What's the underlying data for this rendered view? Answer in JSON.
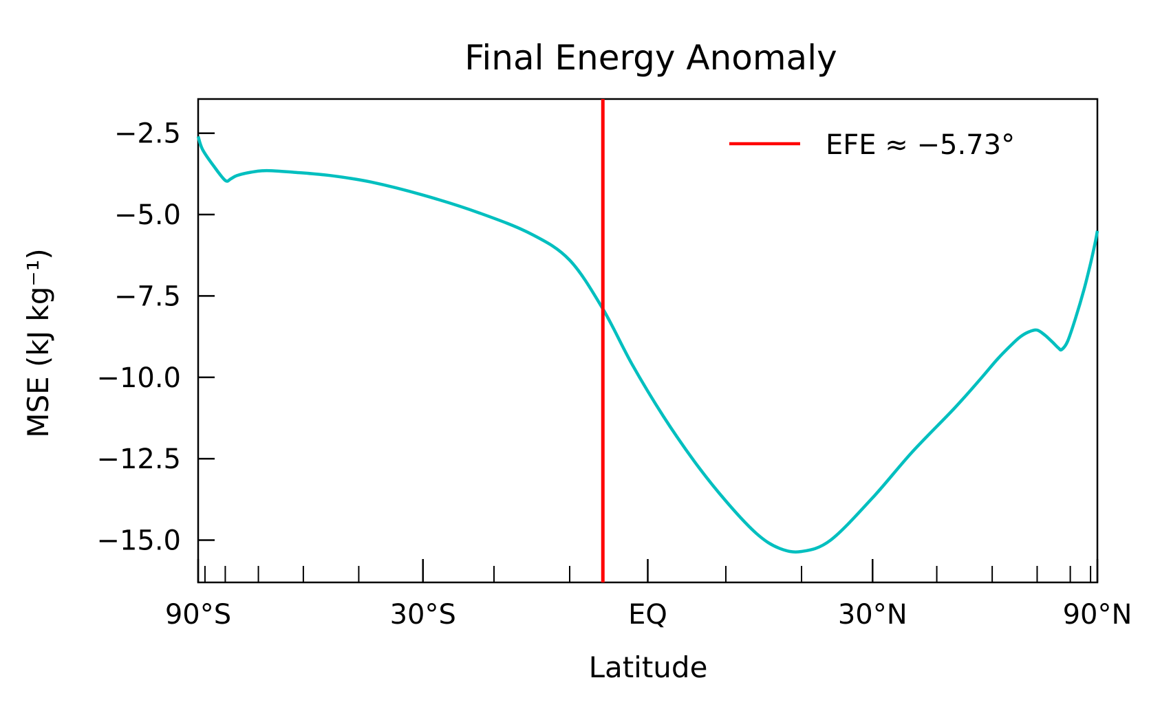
{
  "chart_data": {
    "type": "line",
    "title": "Final Energy Anomaly",
    "xlabel": "Latitude",
    "ylabel": "MSE (kJ kg⁻¹)",
    "x_scale": "sine of latitude",
    "xlim": [
      -90,
      90
    ],
    "ylim": [
      -16.3,
      -1.45
    ],
    "grid": false,
    "legend_position": "top-right",
    "x_major_ticks": [
      {
        "value": -90,
        "label": "90°S"
      },
      {
        "value": -30,
        "label": "30°S"
      },
      {
        "value": 0,
        "label": "EQ"
      },
      {
        "value": 30,
        "label": "30°N"
      },
      {
        "value": 90,
        "label": "90°N"
      }
    ],
    "x_minor_ticks": [
      -80,
      -70,
      -60,
      -50,
      -40,
      -20,
      -10,
      10,
      20,
      40,
      50,
      60,
      70,
      80
    ],
    "y_ticks": [
      {
        "value": -2.5,
        "label": "−2.5"
      },
      {
        "value": -5.0,
        "label": "−5.0"
      },
      {
        "value": -7.5,
        "label": "−7.5"
      },
      {
        "value": -10.0,
        "label": "−10.0"
      },
      {
        "value": -12.5,
        "label": "−12.5"
      },
      {
        "value": -15.0,
        "label": "−15.0"
      }
    ],
    "series": [
      {
        "color": "#00bfbf",
        "x": [
          -90,
          -82,
          -75,
          -70,
          -68,
          -66,
          -62,
          -58,
          -52,
          -45,
          -38,
          -30,
          -22,
          -15,
          -10,
          -5.73,
          -2,
          2,
          6,
          10,
          14,
          17,
          20,
          24,
          30,
          36,
          43,
          48,
          51,
          54,
          56,
          58,
          60,
          62,
          64,
          66,
          67,
          69,
          72,
          76,
          80,
          84,
          88,
          90
        ],
        "y": [
          -2.6,
          -3.0,
          -3.5,
          -3.95,
          -3.9,
          -3.8,
          -3.7,
          -3.65,
          -3.7,
          -3.8,
          -4.0,
          -4.4,
          -4.95,
          -5.6,
          -6.4,
          -7.9,
          -9.6,
          -11.2,
          -12.6,
          -13.8,
          -14.8,
          -15.25,
          -15.35,
          -15.0,
          -13.7,
          -12.3,
          -10.95,
          -10.0,
          -9.45,
          -9.0,
          -8.75,
          -8.6,
          -8.55,
          -8.7,
          -8.9,
          -9.1,
          -9.15,
          -8.9,
          -8.2,
          -7.3,
          -6.5,
          -5.9,
          -5.55,
          -5.5
        ]
      }
    ],
    "vertical_line": {
      "x": -5.73,
      "color": "#ff0000",
      "legend_label": "EFE  ≈ −5.73°"
    }
  }
}
